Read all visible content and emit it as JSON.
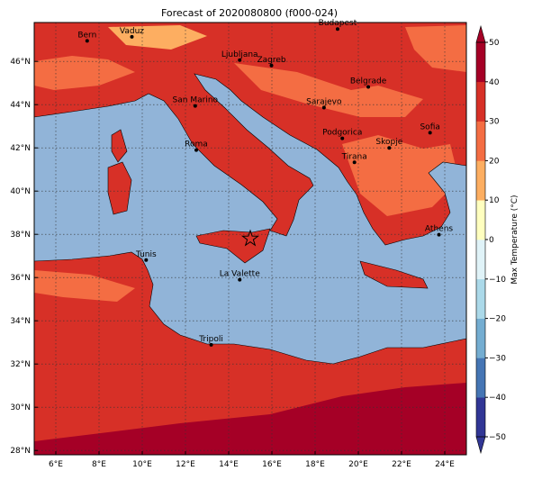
{
  "chart_data": {
    "type": "map",
    "title": "Forecast of 2020080800 (f000-024)",
    "xlim": [
      5,
      25
    ],
    "ylim": [
      27.8,
      47.8
    ],
    "xticks": [
      {
        "value": 6,
        "label": "6°E"
      },
      {
        "value": 8,
        "label": "8°E"
      },
      {
        "value": 10,
        "label": "10°E"
      },
      {
        "value": 12,
        "label": "12°E"
      },
      {
        "value": 14,
        "label": "14°E"
      },
      {
        "value": 16,
        "label": "16°E"
      },
      {
        "value": 18,
        "label": "18°E"
      },
      {
        "value": 20,
        "label": "20°E"
      },
      {
        "value": 22,
        "label": "22°E"
      },
      {
        "value": 24,
        "label": "24°E"
      }
    ],
    "yticks": [
      {
        "value": 28,
        "label": "28°N"
      },
      {
        "value": 30,
        "label": "30°N"
      },
      {
        "value": 32,
        "label": "32°N"
      },
      {
        "value": 34,
        "label": "34°N"
      },
      {
        "value": 36,
        "label": "36°N"
      },
      {
        "value": 38,
        "label": "38°N"
      },
      {
        "value": 40,
        "label": "40°N"
      },
      {
        "value": 42,
        "label": "42°N"
      },
      {
        "value": 44,
        "label": "44°N"
      },
      {
        "value": 46,
        "label": "46°N"
      }
    ],
    "grid": true,
    "cities": [
      {
        "name": "Bern",
        "lon": 7.45,
        "lat": 46.95
      },
      {
        "name": "Vaduz",
        "lon": 9.52,
        "lat": 47.14
      },
      {
        "name": "Budapest",
        "lon": 19.04,
        "lat": 47.5
      },
      {
        "name": "Ljubljana",
        "lon": 14.51,
        "lat": 46.06
      },
      {
        "name": "Zagreb",
        "lon": 15.98,
        "lat": 45.81
      },
      {
        "name": "Belgrade",
        "lon": 20.46,
        "lat": 44.82
      },
      {
        "name": "San Marino",
        "lon": 12.45,
        "lat": 43.94
      },
      {
        "name": "Sarajevo",
        "lon": 18.41,
        "lat": 43.86
      },
      {
        "name": "Sofia",
        "lon": 23.32,
        "lat": 42.7
      },
      {
        "name": "Podgorica",
        "lon": 19.26,
        "lat": 42.44
      },
      {
        "name": "Skopje",
        "lon": 21.43,
        "lat": 42.0
      },
      {
        "name": "Roma",
        "lon": 12.5,
        "lat": 41.9
      },
      {
        "name": "Tirana",
        "lon": 19.82,
        "lat": 41.33
      },
      {
        "name": "Athens",
        "lon": 23.73,
        "lat": 37.98
      },
      {
        "name": "Tunis",
        "lon": 10.18,
        "lat": 36.81
      },
      {
        "name": "La Valette",
        "lon": 14.51,
        "lat": 35.9
      },
      {
        "name": "Tripoli",
        "lon": 13.19,
        "lat": 32.89
      }
    ],
    "marker": {
      "lon": 15.0,
      "lat": 37.8,
      "color": "#d73027"
    },
    "colorbar": {
      "label": "Max Temperature (°C)",
      "lim": [
        -50,
        50
      ],
      "ticks": [
        {
          "value": -50,
          "label": "−50"
        },
        {
          "value": -40,
          "label": "−40"
        },
        {
          "value": -30,
          "label": "−30"
        },
        {
          "value": -20,
          "label": "−20"
        },
        {
          "value": -10,
          "label": "−10"
        },
        0,
        10,
        20,
        30,
        40,
        50
      ],
      "colors": [
        "#313695",
        "#4575b4",
        "#74add1",
        "#abd9e9",
        "#e0f3f8",
        "#ffffbf",
        "#fdae61",
        "#f46d43",
        "#d73027",
        "#a50026"
      ]
    }
  }
}
